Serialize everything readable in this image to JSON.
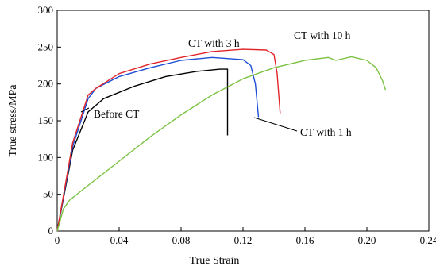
{
  "chart_data": {
    "type": "line",
    "xlabel": "True Strain",
    "ylabel": "True stress/MPa",
    "xlim": [
      0,
      0.24
    ],
    "ylim": [
      0,
      300
    ],
    "xticks": [
      "0",
      "0.04",
      "0.08",
      "0.12",
      "0.16",
      "0.20",
      "0.24"
    ],
    "yticks": [
      "0",
      "50",
      "100",
      "150",
      "200",
      "250",
      "300"
    ],
    "grid": false,
    "series": [
      {
        "name": "Before CT",
        "color": "#000000",
        "x": [
          0.0,
          0.01,
          0.02,
          0.03,
          0.05,
          0.07,
          0.09,
          0.105,
          0.11,
          0.11
        ],
        "y": [
          0,
          110,
          162,
          180,
          197,
          210,
          217,
          220,
          220,
          130
        ]
      },
      {
        "name": "CT with 1 h",
        "color": "#1c4fd6",
        "x": [
          0.0,
          0.01,
          0.02,
          0.025,
          0.04,
          0.06,
          0.08,
          0.1,
          0.12,
          0.125,
          0.128,
          0.13
        ],
        "y": [
          0,
          115,
          180,
          194,
          210,
          222,
          232,
          236,
          233,
          225,
          200,
          155
        ]
      },
      {
        "name": "CT with 3 h",
        "color": "#e0262b",
        "x": [
          0.0,
          0.01,
          0.02,
          0.025,
          0.04,
          0.06,
          0.08,
          0.1,
          0.12,
          0.135,
          0.14,
          0.142,
          0.144
        ],
        "y": [
          0,
          120,
          185,
          194,
          214,
          227,
          236,
          244,
          247,
          246,
          240,
          215,
          160
        ]
      },
      {
        "name": "CT with 10 h",
        "color": "#7cc242",
        "x": [
          0.0,
          0.004,
          0.008,
          0.02,
          0.04,
          0.06,
          0.08,
          0.1,
          0.12,
          0.14,
          0.16,
          0.175,
          0.18,
          0.19,
          0.2,
          0.206,
          0.21,
          0.212
        ],
        "y": [
          0,
          30,
          42,
          62,
          95,
          128,
          158,
          185,
          207,
          222,
          232,
          236,
          232,
          237,
          232,
          222,
          205,
          192
        ]
      }
    ],
    "labels": {
      "before": "Before CT",
      "ct1": "CT with 1 h",
      "ct3": "CT with 3 h",
      "ct10": "CT with 10 h"
    }
  }
}
